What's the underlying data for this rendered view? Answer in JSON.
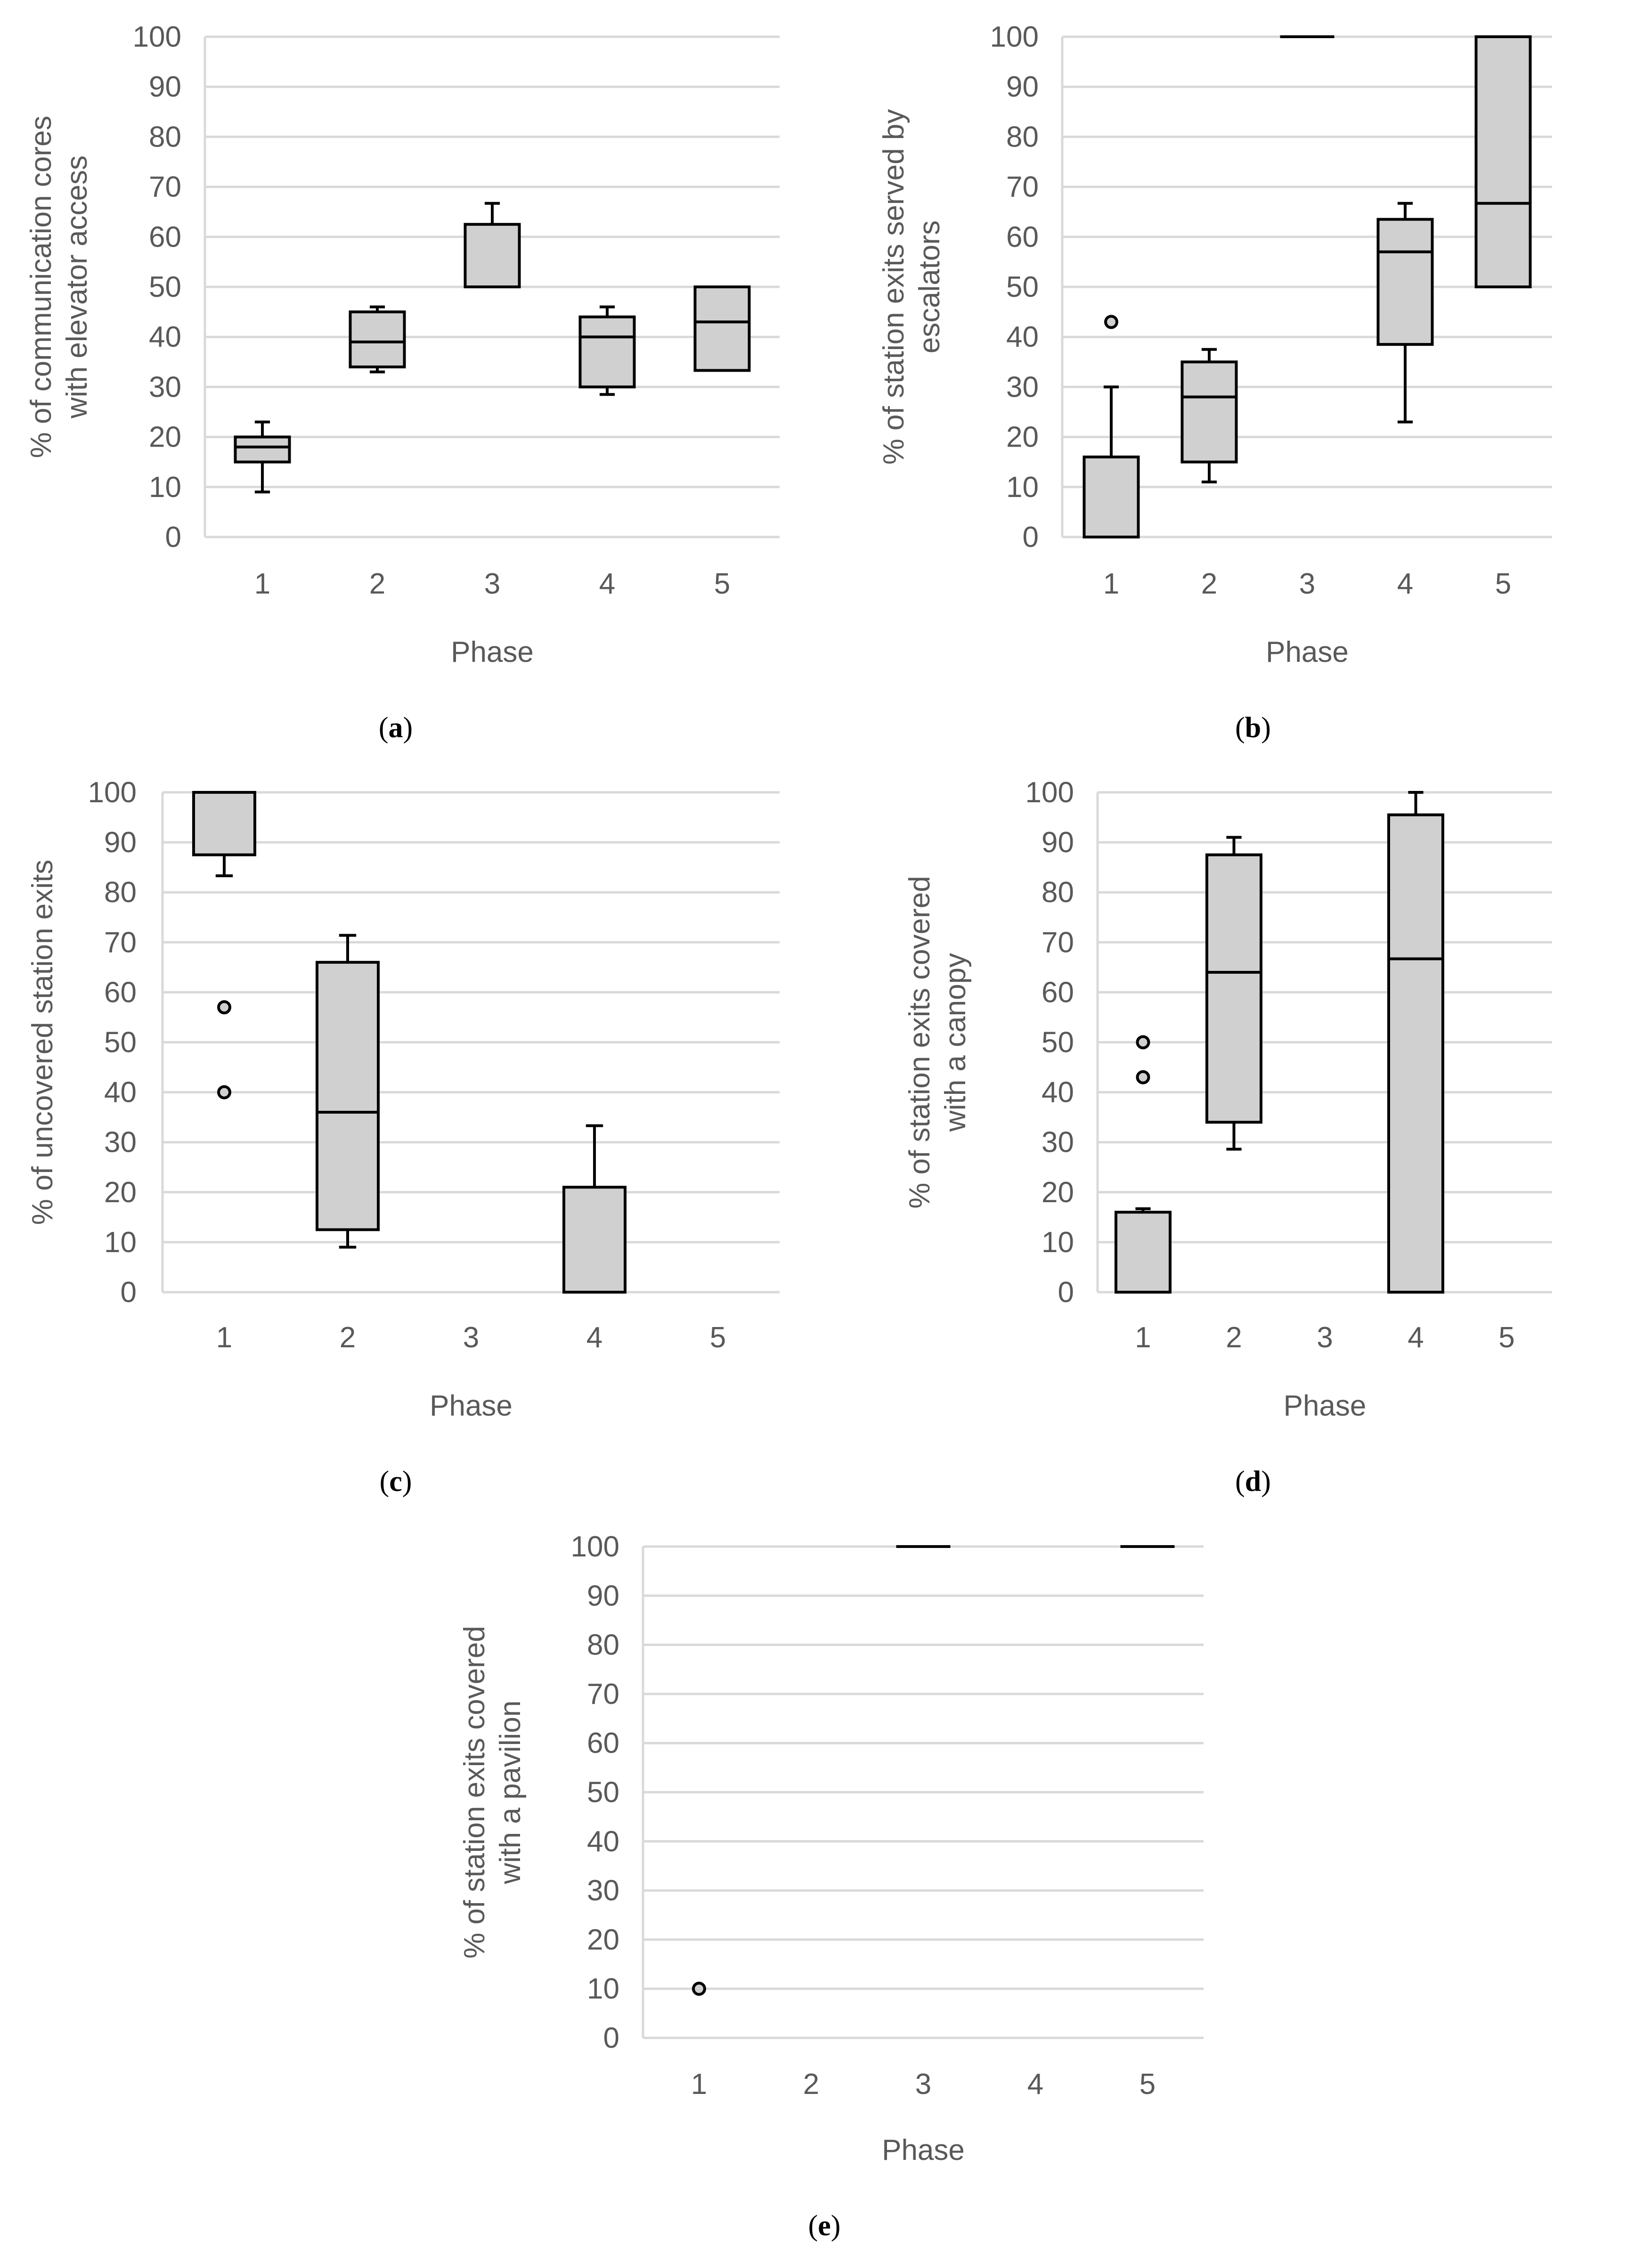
{
  "chart_data": [
    {
      "panel": "a",
      "type": "box",
      "caption": "a",
      "xlabel": "Phase",
      "ylabel_lines": [
        "% of communication cores",
        "with elevator access"
      ],
      "categories": [
        "1",
        "2",
        "3",
        "4",
        "5"
      ],
      "ylim": [
        0,
        100
      ],
      "yticks": [
        "0",
        "10",
        "20",
        "30",
        "40",
        "50",
        "60",
        "70",
        "80",
        "90",
        "100"
      ],
      "boxes": [
        {
          "phase": "1",
          "min": 9,
          "q1": 15,
          "median": 18,
          "q3": 20,
          "max": 23,
          "outliers": []
        },
        {
          "phase": "2",
          "min": 33,
          "q1": 34,
          "median": 39,
          "q3": 45,
          "max": 46,
          "outliers": []
        },
        {
          "phase": "3",
          "min": 50,
          "q1": 50,
          "median": 50,
          "q3": 62.5,
          "max": 66.7,
          "outliers": []
        },
        {
          "phase": "4",
          "min": 28.5,
          "q1": 30,
          "median": 40,
          "q3": 44,
          "max": 46,
          "outliers": []
        },
        {
          "phase": "5",
          "min": 33.3,
          "q1": 33.3,
          "median": 43,
          "q3": 50,
          "max": 50,
          "outliers": []
        }
      ]
    },
    {
      "panel": "b",
      "type": "box",
      "caption": "b",
      "xlabel": "Phase",
      "ylabel_lines": [
        "% of station exits served by",
        "escalators"
      ],
      "categories": [
        "1",
        "2",
        "3",
        "4",
        "5"
      ],
      "ylim": [
        0,
        100
      ],
      "yticks": [
        "0",
        "10",
        "20",
        "30",
        "40",
        "50",
        "60",
        "70",
        "80",
        "90",
        "100"
      ],
      "boxes": [
        {
          "phase": "1",
          "min": 0,
          "q1": 0,
          "median": 0,
          "q3": 16,
          "max": 30,
          "outliers": [
            43
          ]
        },
        {
          "phase": "2",
          "min": 11,
          "q1": 15,
          "median": 28,
          "q3": 35,
          "max": 37.5,
          "outliers": []
        },
        {
          "phase": "3",
          "min": 100,
          "q1": 100,
          "median": 100,
          "q3": 100,
          "max": 100,
          "outliers": []
        },
        {
          "phase": "4",
          "min": 23,
          "q1": 38.5,
          "median": 57,
          "q3": 63.5,
          "max": 66.7,
          "outliers": []
        },
        {
          "phase": "5",
          "min": 50,
          "q1": 50,
          "median": 66.7,
          "q3": 100,
          "max": 100,
          "outliers": []
        }
      ]
    },
    {
      "panel": "c",
      "type": "box",
      "caption": "c",
      "xlabel": "Phase",
      "ylabel_lines": [
        "% of uncovered station exits"
      ],
      "categories": [
        "1",
        "2",
        "3",
        "4",
        "5"
      ],
      "ylim": [
        0,
        100
      ],
      "yticks": [
        "0",
        "10",
        "20",
        "30",
        "40",
        "50",
        "60",
        "70",
        "80",
        "90",
        "100"
      ],
      "boxes": [
        {
          "phase": "1",
          "min": 83.3,
          "q1": 87.5,
          "median": 100,
          "q3": 100,
          "max": 100,
          "outliers": [
            57,
            40
          ]
        },
        {
          "phase": "2",
          "min": 9,
          "q1": 12.5,
          "median": 36,
          "q3": 66,
          "max": 71.4,
          "outliers": []
        },
        {
          "phase": "4",
          "min": 0,
          "q1": 0,
          "median": 0,
          "q3": 21,
          "max": 33.3,
          "outliers": []
        }
      ]
    },
    {
      "panel": "d",
      "type": "box",
      "caption": "d",
      "xlabel": "Phase",
      "ylabel_lines": [
        "% of station exits covered",
        "with a canopy"
      ],
      "categories": [
        "1",
        "2",
        "3",
        "4",
        "5"
      ],
      "ylim": [
        0,
        100
      ],
      "yticks": [
        "0",
        "10",
        "20",
        "30",
        "40",
        "50",
        "60",
        "70",
        "80",
        "90",
        "100"
      ],
      "boxes": [
        {
          "phase": "1",
          "min": 0,
          "q1": 0,
          "median": 0,
          "q3": 16,
          "max": 16.7,
          "outliers": [
            50,
            43
          ]
        },
        {
          "phase": "2",
          "min": 28.6,
          "q1": 34,
          "median": 64,
          "q3": 87.5,
          "max": 91,
          "outliers": []
        },
        {
          "phase": "4",
          "min": 0,
          "q1": 0,
          "median": 66.7,
          "q3": 95.5,
          "max": 100,
          "outliers": []
        }
      ]
    },
    {
      "panel": "e",
      "type": "box",
      "caption": "e",
      "xlabel": "Phase",
      "ylabel_lines": [
        "% of station exits covered",
        "with a pavilion"
      ],
      "categories": [
        "1",
        "2",
        "3",
        "4",
        "5"
      ],
      "ylim": [
        0,
        100
      ],
      "yticks": [
        "0",
        "10",
        "20",
        "30",
        "40",
        "50",
        "60",
        "70",
        "80",
        "90",
        "100"
      ],
      "boxes": [
        {
          "phase": "1",
          "min": 0,
          "q1": 0,
          "median": 0,
          "q3": 0,
          "max": 0,
          "outliers": [
            10
          ]
        },
        {
          "phase": "3",
          "min": 100,
          "q1": 100,
          "median": 100,
          "q3": 100,
          "max": 100,
          "outliers": []
        },
        {
          "phase": "5",
          "min": 100,
          "q1": 100,
          "median": 100,
          "q3": 100,
          "max": 100,
          "outliers": []
        }
      ]
    }
  ]
}
